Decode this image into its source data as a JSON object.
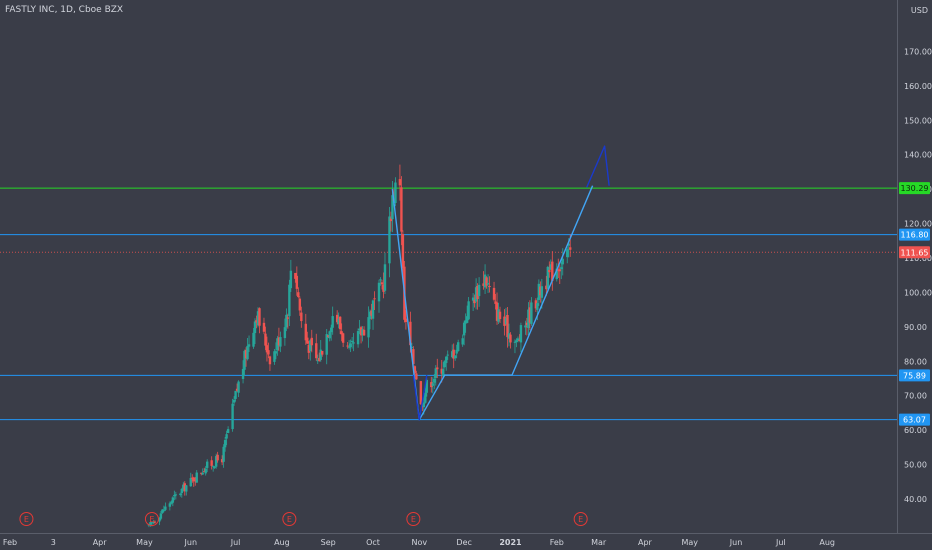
{
  "header": {
    "symbol_line": "FASTLY INC, 1D, Cboe BZX",
    "currency": "USD"
  },
  "chart_data": {
    "type": "candlestick",
    "title": "FASTLY INC, 1D, Cboe BZX",
    "ylabel": "USD",
    "ylim": [
      30,
      180
    ],
    "xlim": [
      "2020-02-01",
      "2021-08-31"
    ],
    "x_ticks": [
      {
        "date": "2020-02-01",
        "label": "Feb"
      },
      {
        "date": "2020-03-01",
        "label": "3"
      },
      {
        "date": "2020-04-01",
        "label": "Apr"
      },
      {
        "date": "2020-05-01",
        "label": "May"
      },
      {
        "date": "2020-06-01",
        "label": "Jun"
      },
      {
        "date": "2020-07-01",
        "label": "Jul"
      },
      {
        "date": "2020-08-01",
        "label": "Aug"
      },
      {
        "date": "2020-09-01",
        "label": "Sep"
      },
      {
        "date": "2020-10-01",
        "label": "Oct"
      },
      {
        "date": "2020-11-01",
        "label": "Nov"
      },
      {
        "date": "2020-12-01",
        "label": "Dec"
      },
      {
        "date": "2021-01-01",
        "label": "2021",
        "bold": true
      },
      {
        "date": "2021-02-01",
        "label": "Feb"
      },
      {
        "date": "2021-03-01",
        "label": "Mar"
      },
      {
        "date": "2021-04-01",
        "label": "Apr"
      },
      {
        "date": "2021-05-01",
        "label": "May"
      },
      {
        "date": "2021-06-01",
        "label": "Jun"
      },
      {
        "date": "2021-07-01",
        "label": "Jul"
      },
      {
        "date": "2021-08-01",
        "label": "Aug"
      }
    ],
    "y_ticks": [
      {
        "value": 40,
        "label": "40.00"
      },
      {
        "value": 50,
        "label": "50.00"
      },
      {
        "value": 60,
        "label": "60.00"
      },
      {
        "value": 70,
        "label": "70.00"
      },
      {
        "value": 80,
        "label": "80.00"
      },
      {
        "value": 90,
        "label": "90.00"
      },
      {
        "value": 100,
        "label": "100.00"
      },
      {
        "value": 110,
        "label": "110.00"
      },
      {
        "value": 120,
        "label": "120.00"
      },
      {
        "value": 130,
        "label": "130.00"
      },
      {
        "value": 140,
        "label": "140.00"
      },
      {
        "value": 150,
        "label": "150.00"
      },
      {
        "value": 160,
        "label": "160.00"
      },
      {
        "value": 170,
        "label": "170.00"
      }
    ],
    "price_keypoints": [
      {
        "date": "2020-05-04",
        "close": 32
      },
      {
        "date": "2020-05-20",
        "close": 40
      },
      {
        "date": "2020-06-10",
        "close": 49
      },
      {
        "date": "2020-06-22",
        "close": 52
      },
      {
        "date": "2020-07-01",
        "close": 70
      },
      {
        "date": "2020-07-10",
        "close": 86
      },
      {
        "date": "2020-07-15",
        "close": 94
      },
      {
        "date": "2020-07-25",
        "close": 80
      },
      {
        "date": "2020-08-05",
        "close": 95
      },
      {
        "date": "2020-08-08",
        "close": 113
      },
      {
        "date": "2020-08-15",
        "close": 88
      },
      {
        "date": "2020-08-25",
        "close": 80
      },
      {
        "date": "2020-09-05",
        "close": 95
      },
      {
        "date": "2020-09-15",
        "close": 82
      },
      {
        "date": "2020-09-25",
        "close": 90
      },
      {
        "date": "2020-10-08",
        "close": 103
      },
      {
        "date": "2020-10-14",
        "close": 128
      },
      {
        "date": "2020-10-19",
        "close": 133
      },
      {
        "date": "2020-10-22",
        "close": 92
      },
      {
        "date": "2020-10-30",
        "close": 76
      },
      {
        "date": "2020-11-02",
        "close": 67
      },
      {
        "date": "2020-11-06",
        "close": 73
      },
      {
        "date": "2020-11-15",
        "close": 78
      },
      {
        "date": "2020-11-28",
        "close": 85
      },
      {
        "date": "2020-12-03",
        "close": 95
      },
      {
        "date": "2020-12-15",
        "close": 105
      },
      {
        "date": "2020-12-22",
        "close": 95
      },
      {
        "date": "2021-01-05",
        "close": 85
      },
      {
        "date": "2021-01-15",
        "close": 95
      },
      {
        "date": "2021-01-22",
        "close": 102
      },
      {
        "date": "2021-02-01",
        "close": 108
      },
      {
        "date": "2021-02-10",
        "close": 111.65
      }
    ],
    "last_price": {
      "value": 111.65,
      "label": "111.65"
    },
    "horizontal_levels": [
      {
        "value": 130.29,
        "label": "130.29",
        "color": "#26d926"
      },
      {
        "value": 116.8,
        "label": "116.80",
        "color": "#2196f3"
      },
      {
        "value": 75.89,
        "label": "75.89",
        "color": "#2196f3"
      },
      {
        "value": 63.07,
        "label": "63.07",
        "color": "#2196f3"
      }
    ],
    "pattern_lines": [
      {
        "color": "#42a5f5",
        "points": [
          {
            "date": "2020-10-14",
            "price": 130
          },
          {
            "date": "2020-11-01",
            "price": 63
          },
          {
            "date": "2020-11-18",
            "price": 76
          },
          {
            "date": "2021-01-02",
            "price": 76
          },
          {
            "date": "2021-02-25",
            "price": 131
          }
        ]
      },
      {
        "color": "#1a3acc",
        "points": [
          {
            "date": "2020-10-28",
            "price": 76
          },
          {
            "date": "2020-11-01",
            "price": 63
          },
          {
            "date": "2020-11-06",
            "price": 76
          }
        ]
      },
      {
        "color": "#1a3acc",
        "points": [
          {
            "date": "2021-02-21",
            "price": 130.5
          },
          {
            "date": "2021-03-05",
            "price": 142.5
          },
          {
            "date": "2021-03-08",
            "price": 131
          }
        ]
      }
    ],
    "earnings_markers": [
      {
        "date": "2020-02-12",
        "label": "E"
      },
      {
        "date": "2020-05-06",
        "label": "E"
      },
      {
        "date": "2020-08-06",
        "label": "E"
      },
      {
        "date": "2020-10-28",
        "label": "E"
      },
      {
        "date": "2021-02-17",
        "label": "E"
      }
    ],
    "colors": {
      "background": "#3a3d48",
      "up": "#26a69a",
      "down": "#ef5350",
      "text": "#d1d4dc",
      "last_price_bg": "#ef5350",
      "earnings": "#e53935"
    }
  }
}
